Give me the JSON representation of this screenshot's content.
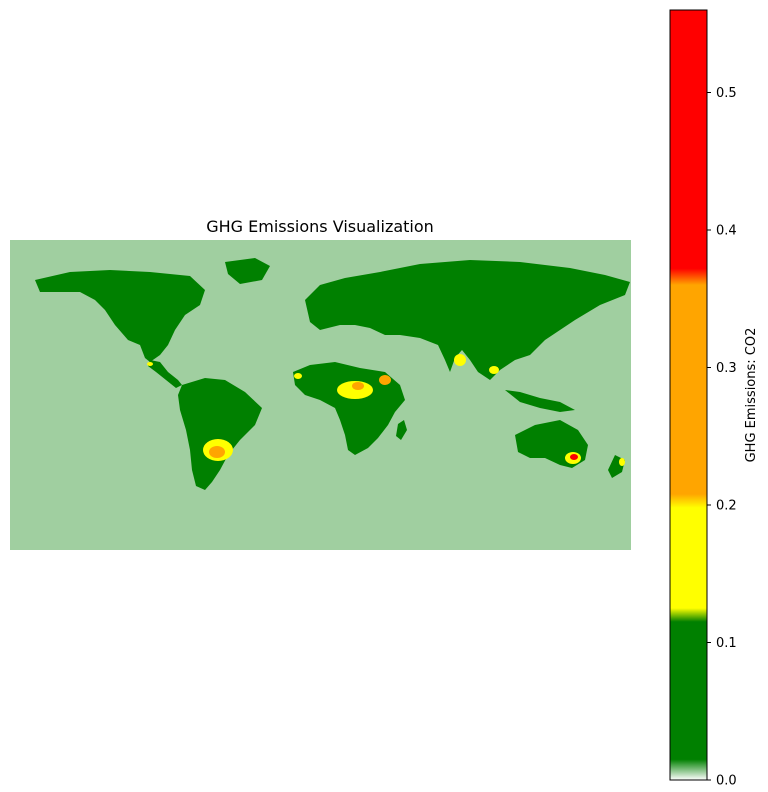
{
  "chart_data": {
    "type": "heatmap",
    "title": "GHG Emissions Visualization",
    "map": {
      "subject": "world map",
      "axes_visible": false,
      "background_color": "#a0cfa0",
      "land_low_color": "#008000",
      "hotspots": [
        {
          "region": "South America (La Plata basin)",
          "level": 0.25
        },
        {
          "region": "Central Africa",
          "level": 0.22
        },
        {
          "region": "East Africa",
          "level": 0.33
        },
        {
          "region": "West Africa coast",
          "level": 0.18
        },
        {
          "region": "India",
          "level": 0.2
        },
        {
          "region": "Southeast Asia",
          "level": 0.18
        },
        {
          "region": "Southeast Australia",
          "level": 0.38
        },
        {
          "region": "New Zealand",
          "level": 0.2
        },
        {
          "region": "Central America",
          "level": 0.18
        }
      ]
    },
    "colorbar": {
      "label": "GHG Emissions: CO2",
      "range": [
        0.0,
        0.56
      ],
      "ticks": [
        "0.0",
        "0.1",
        "0.2",
        "0.3",
        "0.4",
        "0.5"
      ],
      "tick_values": [
        0.0,
        0.1,
        0.2,
        0.3,
        0.4,
        0.5
      ],
      "color_stops": [
        {
          "value": 0.0,
          "color": "#ffffff"
        },
        {
          "value": 0.015,
          "color": "#008000"
        },
        {
          "value": 0.115,
          "color": "#008000"
        },
        {
          "value": 0.125,
          "color": "#ffff00"
        },
        {
          "value": 0.198,
          "color": "#ffff00"
        },
        {
          "value": 0.208,
          "color": "#ffa500"
        },
        {
          "value": 0.36,
          "color": "#ffa500"
        },
        {
          "value": 0.372,
          "color": "#ff0000"
        },
        {
          "value": 0.56,
          "color": "#ff0000"
        }
      ]
    }
  }
}
